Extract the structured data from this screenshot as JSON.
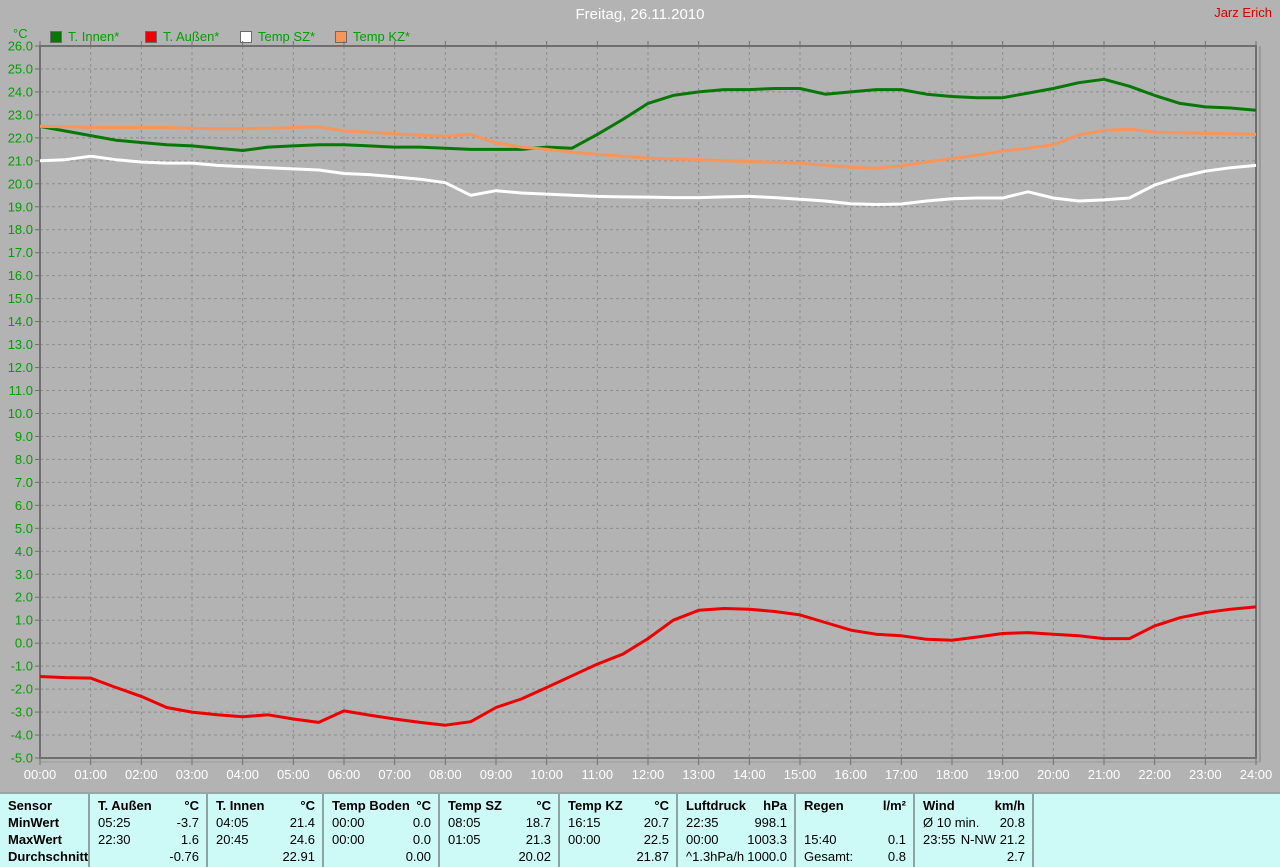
{
  "header": {
    "title": "Freitag, 26.11.2010",
    "author": "Jarz Erich"
  },
  "colors": {
    "background": "#b3b3b3",
    "plot_frame": "#6f6f6f",
    "plot_frame_outer": "#9a9a9a",
    "gridline": "#8d8d8d",
    "axis_text_green": "#00a000",
    "x_label_white": "#ffffff",
    "title_white": "#ffffff",
    "author_red": "#d40000",
    "table_background": "#cdf9f6",
    "table_separator": "#8fa3a3",
    "series_t_innen": "#077807",
    "series_t_aussen": "#ee0000",
    "series_temp_sz": "#ffffff",
    "series_temp_kz": "#f8955a"
  },
  "legend": {
    "items": [
      {
        "label": "T. Innen*",
        "color": "#077807"
      },
      {
        "label": "T. Außen*",
        "color": "#ee0000"
      },
      {
        "label": "Temp SZ*",
        "color": "#ffffff"
      },
      {
        "label": "Temp KZ*",
        "color": "#f8955a"
      }
    ]
  },
  "chart_data": {
    "type": "line",
    "title": "Freitag, 26.11.2010",
    "xlabel": "",
    "ylabel": "°C",
    "ylim": [
      -5.0,
      26.0
    ],
    "ytick_step": 1.0,
    "grid": "dashed",
    "legend_position": "top-left",
    "ytick_labels": [
      "26.0",
      "25.0",
      "24.0",
      "23.0",
      "22.0",
      "21.0",
      "20.0",
      "19.0",
      "18.0",
      "17.0",
      "16.0",
      "15.0",
      "14.0",
      "13.0",
      "12.0",
      "11.0",
      "10.0",
      "9.0",
      "8.0",
      "7.0",
      "6.0",
      "5.0",
      "4.0",
      "3.0",
      "2.0",
      "1.0",
      "0.0",
      "-1.0",
      "-2.0",
      "-3.0",
      "-4.0",
      "-5.0"
    ],
    "xtick_labels": [
      "00:00",
      "01:00",
      "02:00",
      "03:00",
      "04:00",
      "05:00",
      "06:00",
      "07:00",
      "08:00",
      "09:00",
      "10:00",
      "11:00",
      "12:00",
      "13:00",
      "14:00",
      "15:00",
      "16:00",
      "17:00",
      "18:00",
      "19:00",
      "20:00",
      "21:00",
      "22:00",
      "23:00",
      "24:00"
    ],
    "x_hours": [
      0,
      24
    ],
    "x_step_hours": 0.5,
    "series": [
      {
        "name": "T. Innen*",
        "color": "#077807",
        "values": [
          22.5,
          22.3,
          22.1,
          21.9,
          21.8,
          21.7,
          21.65,
          21.55,
          21.45,
          21.6,
          21.65,
          21.7,
          21.7,
          21.65,
          21.6,
          21.6,
          21.55,
          21.5,
          21.5,
          21.5,
          21.6,
          21.55,
          22.15,
          22.8,
          23.5,
          23.85,
          24.0,
          24.1,
          24.1,
          24.15,
          24.15,
          23.9,
          24.0,
          24.1,
          24.1,
          23.9,
          23.8,
          23.75,
          23.75,
          23.95,
          24.15,
          24.4,
          24.55,
          24.25,
          23.85,
          23.5,
          23.35,
          23.3,
          23.2
        ]
      },
      {
        "name": "T. Außen*",
        "color": "#ee0000",
        "values": [
          -1.45,
          -1.5,
          -1.52,
          -1.93,
          -2.32,
          -2.8,
          -3.0,
          -3.12,
          -3.2,
          -3.12,
          -3.3,
          -3.45,
          -2.95,
          -3.13,
          -3.3,
          -3.45,
          -3.57,
          -3.42,
          -2.8,
          -2.43,
          -1.93,
          -1.42,
          -0.91,
          -0.48,
          0.2,
          1.0,
          1.43,
          1.51,
          1.48,
          1.38,
          1.23,
          0.9,
          0.57,
          0.39,
          0.32,
          0.17,
          0.13,
          0.27,
          0.42,
          0.46,
          0.39,
          0.32,
          0.2,
          0.2,
          0.75,
          1.11,
          1.33,
          1.48,
          1.58
        ]
      },
      {
        "name": "Temp SZ*",
        "color": "#ffffff",
        "values": [
          21.0,
          21.05,
          21.2,
          21.05,
          20.95,
          20.9,
          20.9,
          20.8,
          20.75,
          20.7,
          20.65,
          20.6,
          20.45,
          20.4,
          20.3,
          20.2,
          20.05,
          19.5,
          19.7,
          19.6,
          19.55,
          19.5,
          19.45,
          19.43,
          19.42,
          19.4,
          19.4,
          19.43,
          19.45,
          19.4,
          19.33,
          19.25,
          19.13,
          19.1,
          19.12,
          19.25,
          19.35,
          19.38,
          19.38,
          19.65,
          19.38,
          19.25,
          19.3,
          19.38,
          19.95,
          20.3,
          20.55,
          20.7,
          20.8
        ]
      },
      {
        "name": "Temp KZ*",
        "color": "#f8955a",
        "values": [
          22.5,
          22.48,
          22.45,
          22.45,
          22.45,
          22.45,
          22.42,
          22.4,
          22.4,
          22.42,
          22.45,
          22.48,
          22.3,
          22.25,
          22.17,
          22.12,
          22.07,
          22.15,
          21.78,
          21.6,
          21.5,
          21.38,
          21.28,
          21.2,
          21.12,
          21.08,
          21.05,
          21.0,
          20.97,
          20.93,
          20.9,
          20.8,
          20.72,
          20.68,
          20.78,
          20.95,
          21.1,
          21.25,
          21.43,
          21.55,
          21.7,
          22.13,
          22.32,
          22.38,
          22.25,
          22.22,
          22.2,
          22.18,
          22.15
        ]
      }
    ]
  },
  "summary_table": {
    "row_labels": [
      "Sensor",
      "MinWert",
      "MaxWert",
      "Durchschnitt"
    ],
    "groups": [
      {
        "name": "T. Außen",
        "unit": "°C",
        "rows": [
          [
            "05:25",
            "-3.7"
          ],
          [
            "22:30",
            "1.6"
          ],
          [
            "",
            "-0.76"
          ]
        ]
      },
      {
        "name": "T. Innen",
        "unit": "°C",
        "rows": [
          [
            "04:05",
            "21.4"
          ],
          [
            "20:45",
            "24.6"
          ],
          [
            "",
            "22.91"
          ]
        ]
      },
      {
        "name": "Temp Boden",
        "unit": "°C",
        "rows": [
          [
            "00:00",
            "0.0"
          ],
          [
            "00:00",
            "0.0"
          ],
          [
            "",
            "0.00"
          ]
        ]
      },
      {
        "name": "Temp SZ",
        "unit": "°C",
        "rows": [
          [
            "08:05",
            "18.7"
          ],
          [
            "01:05",
            "21.3"
          ],
          [
            "",
            "20.02"
          ]
        ]
      },
      {
        "name": "Temp KZ",
        "unit": "°C",
        "rows": [
          [
            "16:15",
            "20.7"
          ],
          [
            "00:00",
            "22.5"
          ],
          [
            "",
            "21.87"
          ]
        ]
      },
      {
        "name": "Luftdruck",
        "unit": "hPa",
        "rows": [
          [
            "22:35",
            "998.1"
          ],
          [
            "00:00",
            "1003.3"
          ],
          [
            "^1.3hPa/h",
            "1000.0"
          ]
        ]
      },
      {
        "name": "Regen",
        "unit": "l/m²",
        "rows": [
          [
            "",
            ""
          ],
          [
            "15:40",
            "0.1"
          ],
          [
            "Gesamt:",
            "0.8"
          ]
        ]
      },
      {
        "name": "Wind",
        "unit": "km/h",
        "rows": [
          [
            "Ø 10 min.",
            "20.8"
          ],
          [
            "23:55",
            "N-NW 21.2"
          ],
          [
            "",
            "2.7"
          ]
        ]
      }
    ]
  }
}
